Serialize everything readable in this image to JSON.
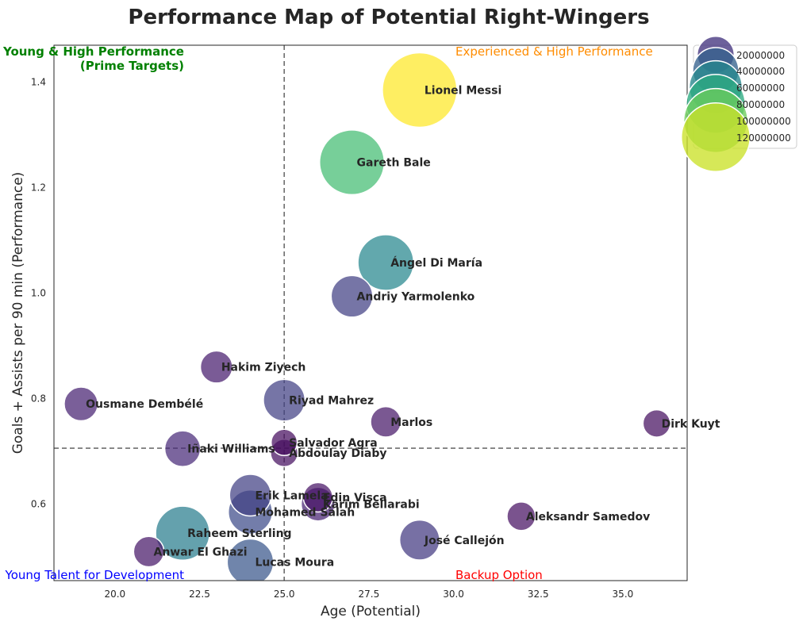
{
  "chart_data": {
    "type": "scatter",
    "title": "Performance Map of Potential Right-Wingers",
    "xlabel": "Age (Potential)",
    "ylabel": "Goals + Assists per 90 min (Performance)",
    "xlim": [
      18.2,
      36.9
    ],
    "ylim": [
      0.455,
      1.47
    ],
    "xticks": [
      20.0,
      22.5,
      25.0,
      27.5,
      30.0,
      32.5,
      35.0
    ],
    "xtick_labels": [
      "20.0",
      "22.5",
      "25.0",
      "27.5",
      "30.0",
      "32.5",
      "35.0"
    ],
    "yticks": [
      0.6,
      0.8,
      1.0,
      1.2,
      1.4
    ],
    "ytick_labels": [
      "0.6",
      "0.8",
      "1.0",
      "1.2",
      "1.4"
    ],
    "grid": false,
    "reference_lines": {
      "x": 25.0,
      "y": 0.706
    },
    "quadrant_labels": [
      {
        "text": "Young & High Performance\n(Prime Targets)",
        "position": "top-left",
        "color": "#008000",
        "bold": true
      },
      {
        "text": "Experienced & High Performance",
        "position": "top-right",
        "color": "#FF8C00",
        "bold": false
      },
      {
        "text": "Young Talent for Development",
        "position": "bottom-left",
        "color": "#0000FF",
        "bold": false
      },
      {
        "text": "Backup Option",
        "position": "bottom-right",
        "color": "#FF0000",
        "bold": false
      }
    ],
    "size_scale": {
      "min_value": 0,
      "max_value": 130000000,
      "colormap": "viridis"
    },
    "legend": {
      "placement": "outside-top-right",
      "entries": [
        "20000000",
        "40000000",
        "60000000",
        "80000000",
        "100000000",
        "120000000"
      ],
      "values": [
        20000000,
        40000000,
        60000000,
        80000000,
        100000000,
        120000000
      ]
    },
    "points": [
      {
        "name": "Lionel Messi",
        "x": 29,
        "y": 1.385,
        "value": 130000000
      },
      {
        "name": "Gareth Bale",
        "x": 27,
        "y": 1.248,
        "value": 90000000
      },
      {
        "name": "Ángel Di María",
        "x": 28,
        "y": 1.058,
        "value": 60000000
      },
      {
        "name": "Andriy Yarmolenko",
        "x": 27,
        "y": 0.994,
        "value": 25000000
      },
      {
        "name": "Hakim Ziyech",
        "x": 23,
        "y": 0.86,
        "value": 10000000
      },
      {
        "name": "Ousmane Dembélé",
        "x": 19,
        "y": 0.79,
        "value": 12000000
      },
      {
        "name": "Riyad Mahrez",
        "x": 25,
        "y": 0.797,
        "value": 25000000
      },
      {
        "name": "Marlos",
        "x": 28,
        "y": 0.756,
        "value": 8000000
      },
      {
        "name": "Dirk Kuyt",
        "x": 36,
        "y": 0.753,
        "value": 5000000
      },
      {
        "name": "Salvador Agra",
        "x": 25,
        "y": 0.717,
        "value": 4000000
      },
      {
        "name": "Iñaki Williams",
        "x": 22,
        "y": 0.705,
        "value": 15000000
      },
      {
        "name": "Abdoulay Diaby",
        "x": 25,
        "y": 0.697,
        "value": 5000000
      },
      {
        "name": "Erik Lamela",
        "x": 24,
        "y": 0.617,
        "value": 25000000
      },
      {
        "name": "Edin Visca",
        "x": 26,
        "y": 0.613,
        "value": 7000000
      },
      {
        "name": "Karim Bellarabi",
        "x": 26,
        "y": 0.6,
        "value": 12000000
      },
      {
        "name": "Mohamed Salah",
        "x": 24,
        "y": 0.585,
        "value": 30000000
      },
      {
        "name": "Aleksandr Samedov",
        "x": 32,
        "y": 0.577,
        "value": 6000000
      },
      {
        "name": "Raheem Sterling",
        "x": 22,
        "y": 0.545,
        "value": 55000000
      },
      {
        "name": "José Callejón",
        "x": 29,
        "y": 0.532,
        "value": 22000000
      },
      {
        "name": "Anwar El Ghazi",
        "x": 21,
        "y": 0.51,
        "value": 8000000
      },
      {
        "name": "Lucas Moura",
        "x": 24,
        "y": 0.49,
        "value": 35000000
      }
    ]
  }
}
